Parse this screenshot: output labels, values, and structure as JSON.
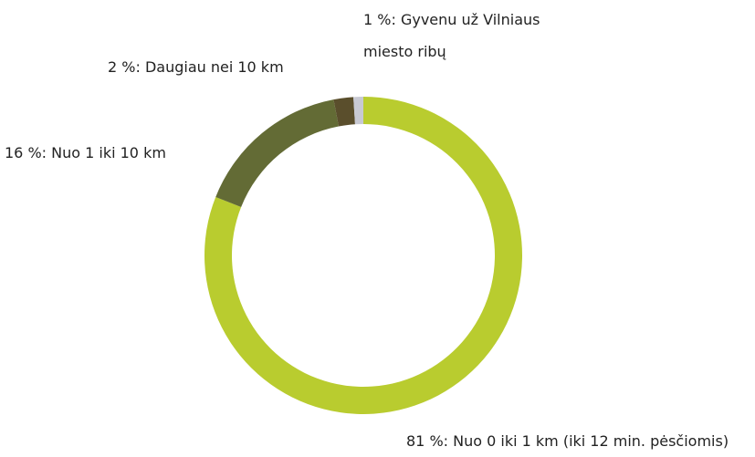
{
  "chart_data": {
    "type": "donut",
    "categories": [
      "Nuo 0 iki 1 km (iki 12 min. pėsčiomis)",
      "Nuo 1 iki 10 km",
      "Daugiau nei 10 km",
      "Gyvenu už Vilniaus\nmiesto ribų"
    ],
    "values": [
      81,
      16,
      2,
      1
    ],
    "value_labels": [
      "81 %: Nuo 0 iki 1 km (iki 12 min. pėsčiomis)",
      "16 %: Nuo 1 iki 10 km",
      "2 %: Daugiau nei 10 km",
      "1 %: Gyvenu už Vilniaus\nmiesto ribų"
    ],
    "colors": [
      "#b9cc2f",
      "#636b35",
      "#5a4e2c",
      "#c8c9d3"
    ]
  }
}
